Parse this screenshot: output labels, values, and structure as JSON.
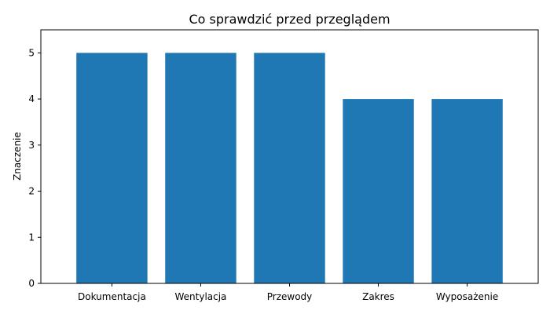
{
  "chart_data": {
    "type": "bar",
    "title": "Co sprawdzić przed przeglądem",
    "xlabel": "",
    "ylabel": "Znaczenie",
    "categories": [
      "Dokumentacja",
      "Wentylacja",
      "Przewody",
      "Zakres",
      "Wyposażenie"
    ],
    "values": [
      5,
      5,
      5,
      4,
      4
    ],
    "ylim": [
      0,
      5.5
    ],
    "yticks": [
      0,
      1,
      2,
      3,
      4,
      5
    ],
    "grid": false,
    "colors": {
      "bar": "#1f77b4",
      "axis": "#000000",
      "background": "#ffffff"
    }
  }
}
